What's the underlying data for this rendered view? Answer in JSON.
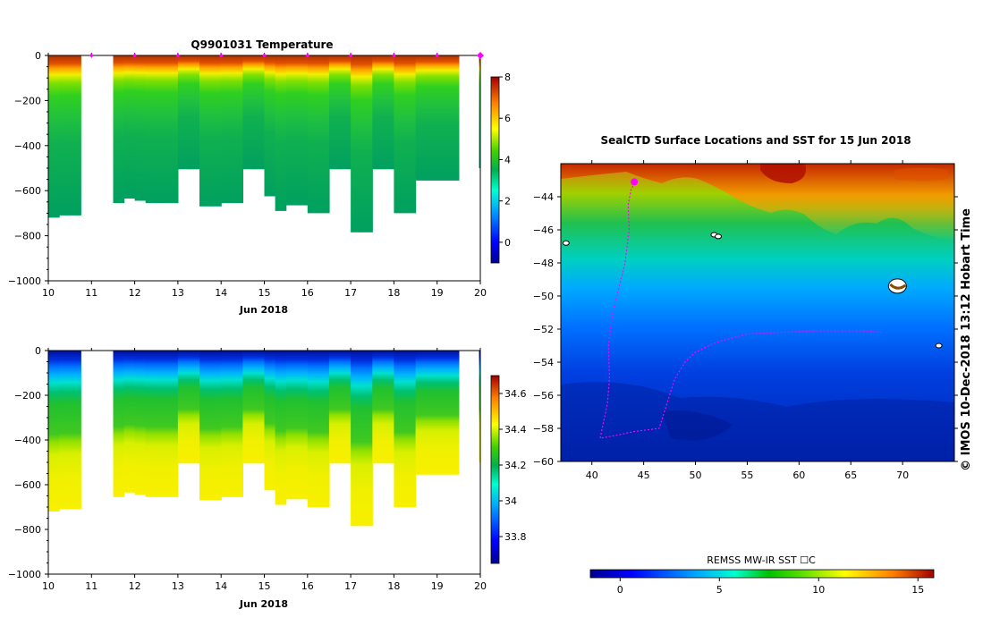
{
  "chart_data": [
    {
      "type": "heatmap",
      "title": "Q9901031  Temperature",
      "xlabel": "Jun 2018",
      "x_ticks": [
        "10",
        "11",
        "12",
        "13",
        "14",
        "15",
        "16",
        "17",
        "18",
        "19",
        "20"
      ],
      "y_ticks": [
        "0",
        "−200",
        "−400",
        "−600",
        "−800",
        "−1000"
      ],
      "ylim": [
        -1000,
        0
      ],
      "xlim": [
        10,
        20
      ],
      "colorbar_ticks": [
        "8",
        "6",
        "4",
        "2",
        "0"
      ],
      "colorbar_range": [
        -1,
        8
      ],
      "profile_days": [
        10.0,
        10.25,
        10.5,
        11.5,
        11.75,
        12.0,
        12.25,
        12.5,
        12.75,
        13.0,
        13.25,
        13.5,
        13.75,
        14.0,
        14.25,
        14.5,
        14.75,
        15.0,
        15.25,
        15.5,
        15.75,
        16.0,
        16.25,
        16.5,
        16.75,
        17.0,
        17.25,
        17.5,
        17.75,
        18.0,
        18.25,
        18.5,
        18.75,
        19.0,
        19.25
      ],
      "profile_max_depths": [
        -720,
        -710,
        -710,
        -655,
        -635,
        -645,
        -655,
        -655,
        -655,
        -505,
        -505,
        -670,
        -670,
        -655,
        -655,
        -505,
        -505,
        -625,
        -690,
        -665,
        -665,
        -700,
        -700,
        -505,
        -505,
        -785,
        -785,
        -505,
        -505,
        -700,
        -700,
        -555,
        -555,
        -555,
        -555
      ],
      "surface_range": [
        7.5,
        8.0
      ],
      "deep_range": [
        2.5,
        3.0
      ],
      "surface_marker_days": [
        11.0,
        12.0,
        13.0,
        14.0,
        15.0,
        16.0,
        17.0,
        18.0,
        19.0,
        20.0
      ]
    },
    {
      "type": "heatmap",
      "title": "",
      "xlabel": "Jun 2018",
      "x_ticks": [
        "10",
        "11",
        "12",
        "13",
        "14",
        "15",
        "16",
        "17",
        "18",
        "19",
        "20"
      ],
      "y_ticks": [
        "0",
        "−200",
        "−400",
        "−600",
        "−800",
        "−1000"
      ],
      "ylim": [
        -1000,
        0
      ],
      "xlim": [
        10,
        20
      ],
      "colorbar_ticks": [
        "34.6",
        "34.4",
        "34.2",
        "34",
        "33.8"
      ],
      "colorbar_range": [
        33.65,
        34.7
      ],
      "surface_range": [
        33.7,
        33.8
      ],
      "deep_range": [
        34.3,
        34.4
      ]
    },
    {
      "type": "heatmap",
      "title": "SealCTD Surface Locations and SST for 15 Jun 2018",
      "x_ticks": [
        "40",
        "45",
        "50",
        "55",
        "60",
        "65",
        "70"
      ],
      "y_ticks": [
        "−44",
        "−46",
        "−48",
        "−50",
        "−52",
        "−54",
        "−56",
        "−58",
        "−60"
      ],
      "xlim": [
        37,
        75
      ],
      "ylim": [
        -60,
        -42
      ],
      "colorbar_label": "REMSS MW-IR SST ☐C",
      "colorbar_ticks": [
        "0",
        "5",
        "10",
        "15"
      ],
      "colorbar_range": [
        -1.5,
        15.8
      ],
      "track_points": [
        [
          44.2,
          -43.2
        ],
        [
          43.8,
          -43.5
        ],
        [
          43.5,
          -44.5
        ],
        [
          43.6,
          -46
        ],
        [
          43.2,
          -48
        ],
        [
          42.8,
          -49
        ],
        [
          42.0,
          -51
        ],
        [
          41.6,
          -53
        ],
        [
          41.7,
          -55
        ],
        [
          41.5,
          -56.5
        ],
        [
          41,
          -58
        ],
        [
          40.8,
          -58.6
        ],
        [
          42.5,
          -58.4
        ],
        [
          44,
          -58.2
        ],
        [
          46.5,
          -58
        ],
        [
          47,
          -57
        ],
        [
          47.5,
          -56
        ],
        [
          48,
          -55
        ],
        [
          49,
          -54
        ],
        [
          50,
          -53.4
        ],
        [
          52,
          -52.8
        ],
        [
          55,
          -52.3
        ],
        [
          58,
          -52.2
        ],
        [
          62,
          -52.1
        ],
        [
          66,
          -52.1
        ],
        [
          68,
          -52.2
        ]
      ],
      "current_position": [
        44.1,
        -43.1
      ],
      "islands": [
        [
          37.5,
          -46.8
        ],
        [
          51.8,
          -46.3
        ],
        [
          52.2,
          -46.4
        ],
        [
          69.5,
          -49.4
        ],
        [
          73.5,
          -53.0
        ]
      ]
    }
  ],
  "side_text": "©  IMOS 10-Dec-2018 13:12 Hobart Time",
  "colors": {
    "marker": "#ff00ff",
    "track": "#ff00ff"
  }
}
